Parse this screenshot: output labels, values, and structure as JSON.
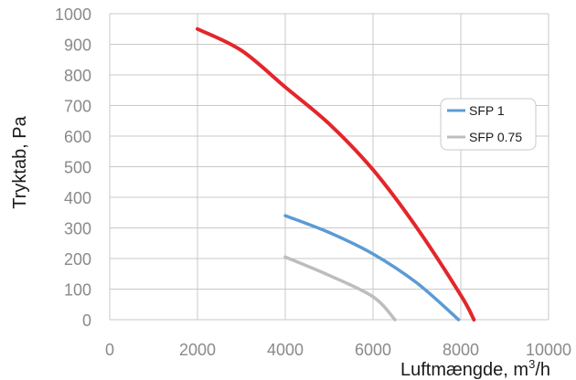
{
  "chart_data": {
    "type": "line",
    "xlabel": "Luftmængde, m",
    "xlabel_sup": "3",
    "xlabel_suffix": "/h",
    "ylabel": "Tryktab, Pa",
    "xlim": [
      0,
      10000
    ],
    "ylim": [
      0,
      1000
    ],
    "x_ticks": [
      "0",
      "2000",
      "4000",
      "6000",
      "8000",
      "10000"
    ],
    "y_ticks": [
      "0",
      "100",
      "200",
      "300",
      "400",
      "500",
      "600",
      "700",
      "800",
      "900",
      "1000"
    ],
    "grid": true,
    "legend_position": "right",
    "series": [
      {
        "color": "#e3262b",
        "x": [
          2000,
          3000,
          4000,
          5000,
          6000,
          7000,
          8000,
          8300
        ],
        "y": [
          950,
          880,
          760,
          640,
          490,
          300,
          80,
          0
        ]
      },
      {
        "name": "SFP 1",
        "color": "#5b9bd5",
        "x": [
          4000,
          5000,
          6000,
          7000,
          7950
        ],
        "y": [
          340,
          285,
          215,
          120,
          0
        ]
      },
      {
        "name": "SFP 0.75",
        "color": "#bdbdbd",
        "x": [
          4000,
          5000,
          6000,
          6500
        ],
        "y": [
          205,
          145,
          75,
          0
        ]
      }
    ]
  }
}
